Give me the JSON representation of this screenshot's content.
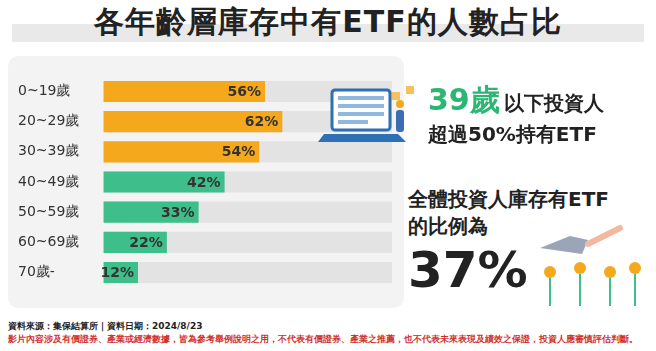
{
  "chart_data": {
    "type": "bar",
    "orientation": "horizontal",
    "title": "各年齡層庫存中有ETF的人數占比",
    "categories": [
      "0~19歲",
      "20~29歲",
      "30~39歲",
      "40~49歲",
      "50~59歲",
      "60~69歲",
      "70歲-"
    ],
    "values": [
      56,
      62,
      54,
      42,
      33,
      22,
      12
    ],
    "value_labels": [
      "56%",
      "62%",
      "54%",
      "42%",
      "33%",
      "22%",
      "12%"
    ],
    "colors": [
      "#f5a81c",
      "#f5a81c",
      "#f5a81c",
      "#3dbe8b",
      "#3dbe8b",
      "#3dbe8b",
      "#3dbe8b"
    ],
    "xlim": [
      0,
      100
    ],
    "grid": false,
    "tick_labels": "y",
    "data_labels": true,
    "annotations": [
      {
        "lines": [
          "39歲",
          "以下投資人",
          "超過50%持有ETF"
        ]
      },
      {
        "lines": [
          "全體投資人庫存有ETF",
          "的比例為",
          "37%"
        ]
      }
    ],
    "source": "資料來源：集保結算所｜資料日期：2024/8/23",
    "disclaimer": "影片內容涉及有價證券、產業或經濟數據，皆為參考舉例說明之用，不代表有價證券、產業之推薦，也不代表未來表現及績效之保證，投資人應審慎評估判斷。"
  }
}
